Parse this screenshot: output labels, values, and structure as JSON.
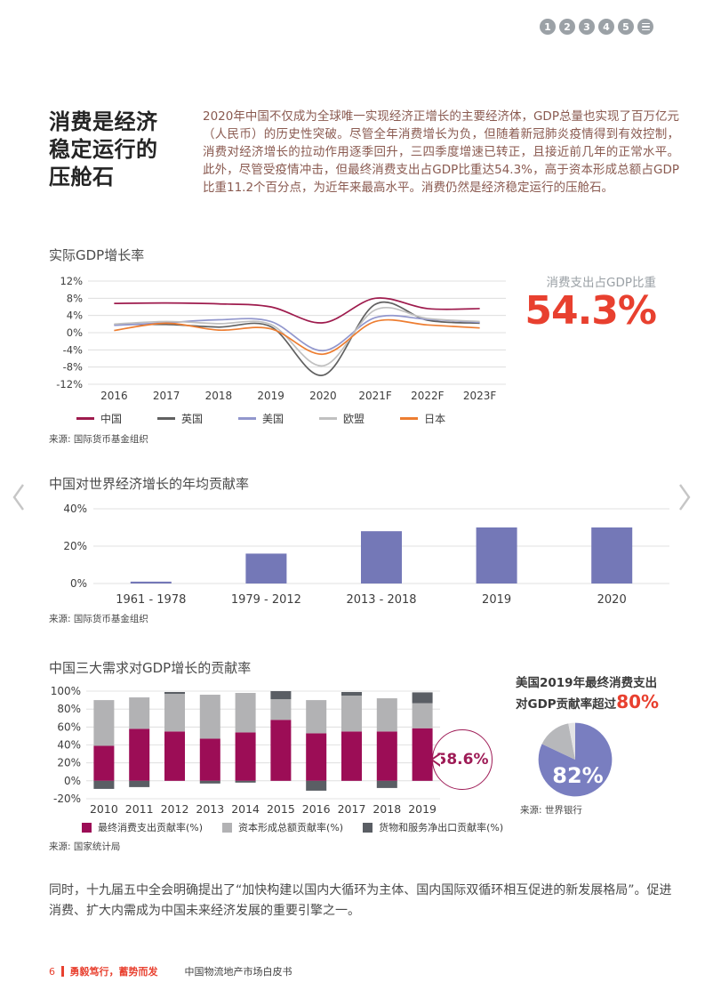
{
  "pagination": {
    "items": [
      "1",
      "2",
      "3",
      "4",
      "5"
    ],
    "menu_icon": "hamburger"
  },
  "article": {
    "title": "消费是经济稳定运行的压舱石",
    "intro": "2020年中国不仅成为全球唯一实现经济正增长的主要经济体，GDP总量也实现了百万亿元（人民币）的历史性突破。尽管全年消费增长为负，但随着新冠肺炎疫情得到有效控制，消费对经济增长的拉动作用逐季回升，三四季度增速已转正，且接近前几年的正常水平。此外，尽管受疫情冲击，但最终消费支出占GDP比重达54.3%，高于资本形成总额占GDP比重11.2个百分点，为近年来最高水平。消费仍然是经济稳定运行的压舱石。",
    "closing": "同时，十九届五中全会明确提出了“加快构建以国内大循环为主体、国内国际双循环相互促进的新发展格局”。促进消费、扩大内需成为中国未来经济发展的重要引擎之一。"
  },
  "highlight": {
    "label": "消费支出占GDP比重",
    "value": "54.3%"
  },
  "us_note": {
    "line1": "美国2019年最终消费支出",
    "line2_prefix": "对GDP贡献率超过",
    "line2_emphasis": "80%"
  },
  "footer": {
    "page_number": "6",
    "slogan": "勇毅笃行，蓄势而发",
    "doc_title": "中国物流地产市场白皮书"
  },
  "colors": {
    "accent_red": "#e8402f",
    "brand_crimson": "#9c0d56",
    "bar_purple": "#7478b7"
  },
  "chart_data": [
    {
      "id": "real-gdp-growth",
      "type": "line",
      "title": "实际GDP增长率",
      "source": "来源: 国际货币基金组织",
      "categories": [
        "2016",
        "2017",
        "2018",
        "2019",
        "2020",
        "2021F",
        "2022F",
        "2023F"
      ],
      "ylim": [
        -12,
        12
      ],
      "ytick_step": 4,
      "ytick_suffix": "%",
      "grid": true,
      "legend_position": "bottom",
      "series": [
        {
          "name": "中国",
          "color": "#9e1b4d",
          "values": [
            6.8,
            6.9,
            6.7,
            6.0,
            2.3,
            8.0,
            5.6,
            5.6
          ]
        },
        {
          "name": "英国",
          "color": "#606060",
          "values": [
            1.9,
            1.9,
            1.3,
            1.4,
            -9.9,
            6.6,
            2.9,
            2.2
          ]
        },
        {
          "name": "美国",
          "color": "#9297cd",
          "values": [
            1.7,
            2.3,
            3.0,
            2.6,
            -4.2,
            3.5,
            3.1,
            2.4
          ]
        },
        {
          "name": "欧盟",
          "color": "#c0c0c0",
          "values": [
            2.0,
            2.6,
            2.1,
            1.9,
            -7.7,
            5.3,
            3.3,
            2.6
          ]
        },
        {
          "name": "日本",
          "color": "#ed7d31",
          "values": [
            0.5,
            2.2,
            0.6,
            0.9,
            -5.0,
            2.6,
            1.8,
            1.1
          ]
        }
      ]
    },
    {
      "id": "china-world-contribution",
      "type": "bar",
      "title": "中国对世界经济增长的年均贡献率",
      "source": "来源: 国际货币基金组织",
      "categories": [
        "1961 - 1978",
        "1979 - 2012",
        "2013 - 2018",
        "2019",
        "2020"
      ],
      "values": [
        1,
        16,
        28,
        30,
        30
      ],
      "bar_color": "#7478b7",
      "ylim": [
        0,
        40
      ],
      "ytick_step": 20,
      "ytick_suffix": "%"
    },
    {
      "id": "three-demands-contribution",
      "type": "stacked_bar",
      "title": "中国三大需求对GDP增长的贡献率",
      "source": "来源: 国家统计局",
      "categories": [
        "2010",
        "2011",
        "2012",
        "2013",
        "2014",
        "2015",
        "2016",
        "2017",
        "2018",
        "2019"
      ],
      "ylim": [
        -20,
        100
      ],
      "ytick_step": 20,
      "ytick_suffix": "%",
      "series": [
        {
          "name": "最终消费支出贡献率(%)",
          "color": "#9c0d56",
          "values": [
            39,
            58,
            55,
            47,
            54,
            68,
            53,
            55,
            55,
            58.6
          ]
        },
        {
          "name": "资本形成总额贡献率(%)",
          "color": "#b2b2b4",
          "values": [
            51,
            35,
            42,
            49,
            44,
            23,
            37,
            40,
            37,
            28
          ]
        },
        {
          "name": "货物和服务净出口贡献率(%)",
          "color": "#5a5e64",
          "values": [
            -9,
            -7,
            2,
            -3,
            -2,
            9,
            -11,
            4,
            -8,
            12
          ]
        }
      ],
      "callout": {
        "value": "58.6%",
        "category": "2019"
      }
    },
    {
      "id": "us-consumption-share",
      "type": "pie",
      "source": "来源: 世界银行",
      "label": "82%",
      "slices": [
        {
          "value": 82,
          "color": "#797ec0"
        },
        {
          "value": 15,
          "color": "#b7b8bb"
        },
        {
          "value": 3,
          "color": "#e3e3e5"
        }
      ]
    }
  ]
}
